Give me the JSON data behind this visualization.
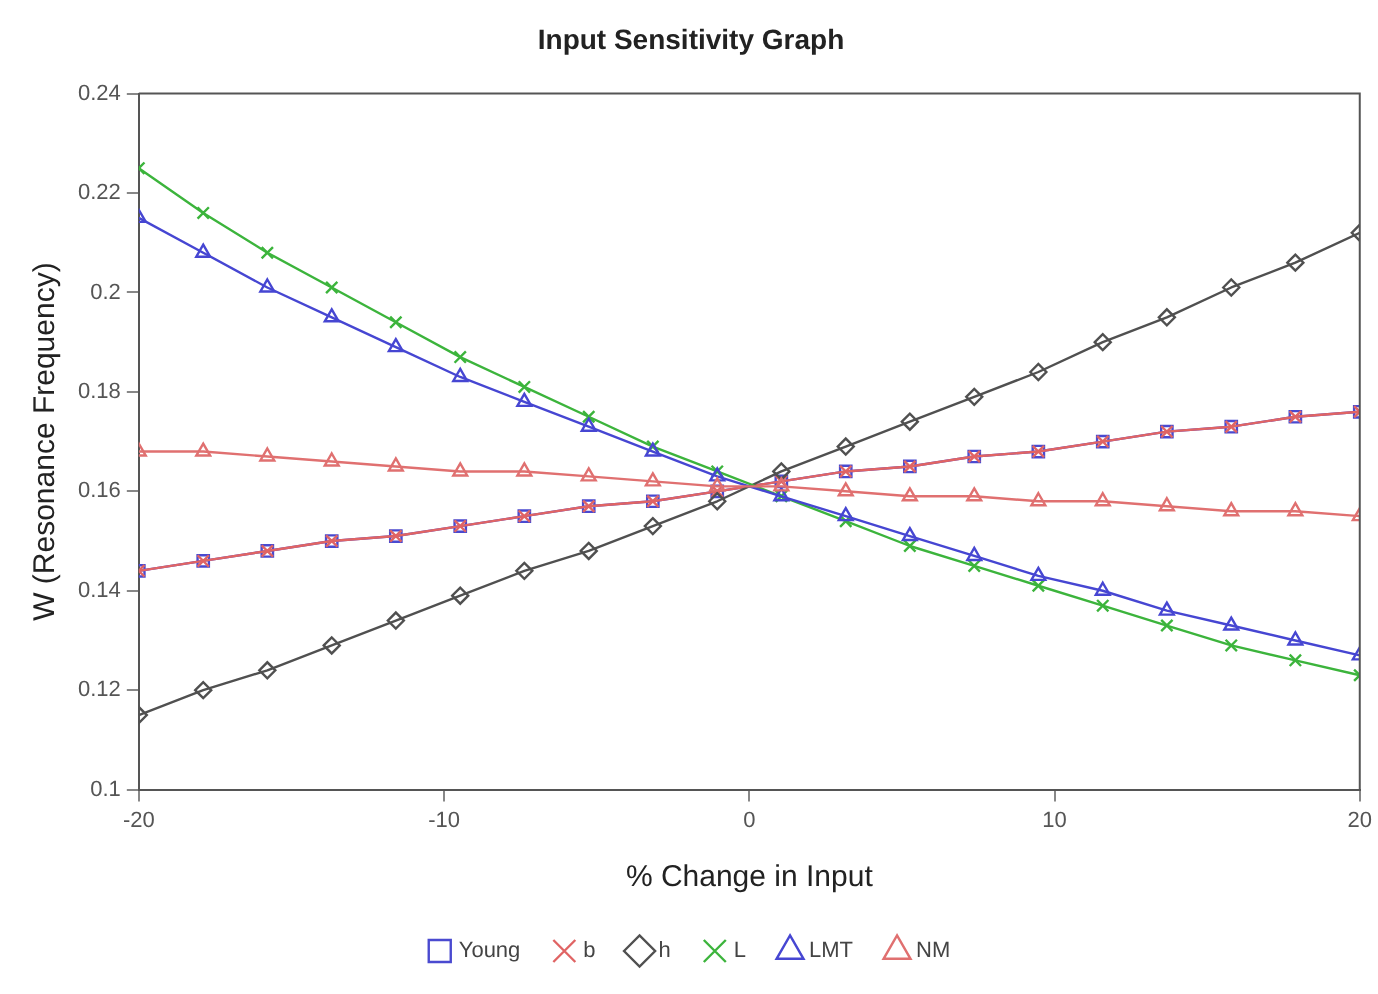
{
  "chart_data": {
    "type": "line",
    "title": "Input Sensitivity Graph",
    "xlabel": "% Change in Input",
    "ylabel": "W (Resonance Frequency)",
    "x": [
      -20,
      -17.89,
      -15.79,
      -13.68,
      -11.58,
      -9.47,
      -7.37,
      -5.26,
      -3.16,
      -1.05,
      1.05,
      3.16,
      5.26,
      7.37,
      9.47,
      11.58,
      13.68,
      15.79,
      17.89,
      20
    ],
    "series": [
      {
        "name": "Young",
        "color": "#4a4ad0",
        "marker": "square",
        "values": [
          0.144,
          0.146,
          0.148,
          0.15,
          0.151,
          0.153,
          0.155,
          0.157,
          0.158,
          0.16,
          0.162,
          0.164,
          0.165,
          0.167,
          0.168,
          0.17,
          0.172,
          0.173,
          0.175,
          0.176
        ]
      },
      {
        "name": "b",
        "color": "#e06464",
        "marker": "cross",
        "values": [
          0.144,
          0.146,
          0.148,
          0.15,
          0.151,
          0.153,
          0.155,
          0.157,
          0.158,
          0.16,
          0.162,
          0.164,
          0.165,
          0.167,
          0.168,
          0.17,
          0.172,
          0.173,
          0.175,
          0.176
        ]
      },
      {
        "name": "h",
        "color": "#505050",
        "marker": "diamond",
        "values": [
          0.115,
          0.12,
          0.124,
          0.129,
          0.134,
          0.139,
          0.144,
          0.148,
          0.153,
          0.158,
          0.164,
          0.169,
          0.174,
          0.179,
          0.184,
          0.19,
          0.195,
          0.201,
          0.206,
          0.212
        ]
      },
      {
        "name": "L",
        "color": "#3cb43c",
        "marker": "cross",
        "values": [
          0.225,
          0.216,
          0.208,
          0.201,
          0.194,
          0.187,
          0.181,
          0.175,
          0.169,
          0.164,
          0.159,
          0.154,
          0.149,
          0.145,
          0.141,
          0.137,
          0.133,
          0.129,
          0.126,
          0.123
        ]
      },
      {
        "name": "LMT",
        "color": "#4646d2",
        "marker": "triangle",
        "values": [
          0.215,
          0.208,
          0.201,
          0.195,
          0.189,
          0.183,
          0.178,
          0.173,
          0.168,
          0.163,
          0.159,
          0.155,
          0.151,
          0.147,
          0.143,
          0.14,
          0.136,
          0.133,
          0.13,
          0.127
        ]
      },
      {
        "name": "NM",
        "color": "#e07070",
        "marker": "triangle",
        "values": [
          0.168,
          0.168,
          0.167,
          0.166,
          0.165,
          0.164,
          0.164,
          0.163,
          0.162,
          0.161,
          0.161,
          0.16,
          0.159,
          0.159,
          0.158,
          0.158,
          0.157,
          0.156,
          0.156,
          0.155
        ]
      }
    ],
    "xlim": [
      -20,
      20
    ],
    "xticks": [
      -20,
      -10,
      0,
      10,
      20
    ],
    "ylim": [
      0.1,
      0.24
    ],
    "yticks": [
      0.1,
      0.12,
      0.14,
      0.16,
      0.18,
      0.2,
      0.22,
      0.24
    ],
    "grid": false,
    "legend": "bottom",
    "line_style": "solid"
  }
}
